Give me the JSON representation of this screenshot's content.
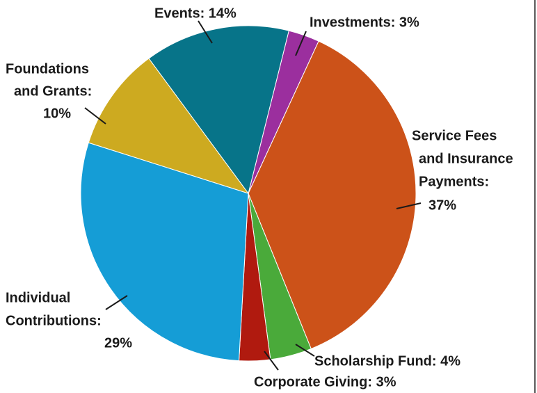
{
  "chart_data": {
    "type": "pie",
    "categories": [
      "Investments",
      "Service Fees and Insurance Payments",
      "Scholarship Fund",
      "Corporate Giving",
      "Individual Contributions",
      "Foundations and Grants",
      "Events"
    ],
    "values": [
      3,
      37,
      4,
      3,
      29,
      10,
      14
    ],
    "value_labels": [
      [
        "Investments: 3%"
      ],
      [
        "Service Fees",
        "and Insurance",
        "Payments:",
        "37%"
      ],
      [
        "Scholarship Fund: 4%"
      ],
      [
        "Corporate Giving: 3%"
      ],
      [
        "Individual",
        "Contributions:",
        "29%"
      ],
      [
        "Foundations",
        "and Grants:",
        "10%"
      ],
      [
        "Events: 14%"
      ]
    ],
    "colors": [
      "#9b2f9e",
      "#cc5219",
      "#4aaa3a",
      "#b01a0f",
      "#159dd6",
      "#cdaa20",
      "#077489"
    ]
  }
}
